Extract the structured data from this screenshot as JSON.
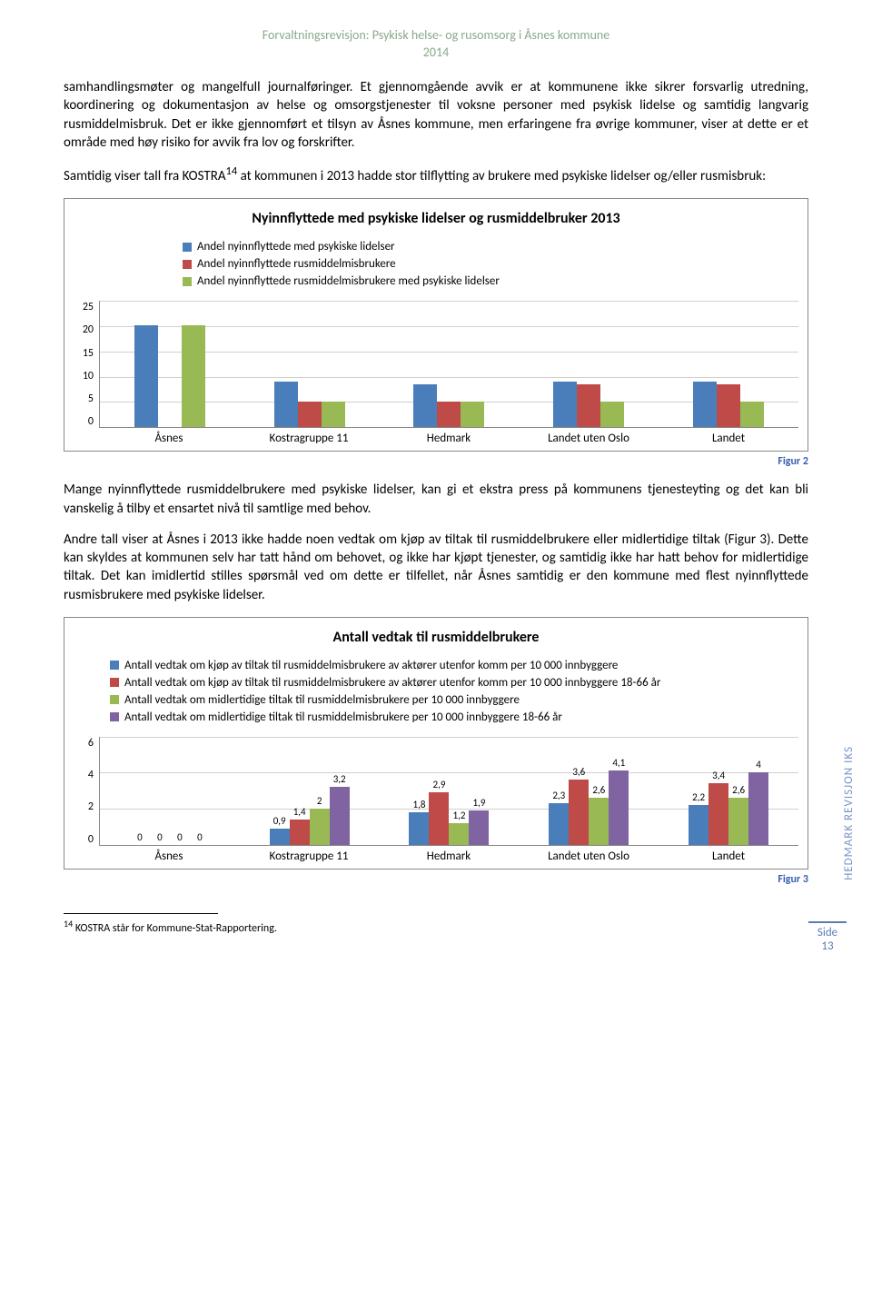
{
  "header": {
    "title": "Forvaltningsrevisjon: Psykisk helse- og rusomsorg i Åsnes kommune",
    "year": "2014"
  },
  "paragraphs": {
    "p1": "samhandlingsmøter og mangelfull journalføringer. Et gjennomgående avvik er at kommunene ikke sikrer forsvarlig utredning, koordinering og dokumentasjon av helse og omsorgstjenester til voksne personer med psykisk lidelse og samtidig langvarig rusmiddelmisbruk. Det er ikke gjennomført et tilsyn av Åsnes kommune, men erfaringene fra øvrige kommuner, viser at dette er et område med høy risiko for avvik fra lov og forskrifter.",
    "p2_pre": "Samtidig viser tall fra KOSTRA",
    "p2_sup": "14",
    "p2_post": " at kommunen i 2013 hadde stor tilflytting av brukere med psykiske lidelser og/eller rusmisbruk:",
    "p3": "Mange nyinnflyttede rusmiddelbrukere med psykiske lidelser, kan gi et ekstra press på kommunens tjenesteyting og det kan bli vanskelig å tilby et ensartet nivå til samtlige med behov.",
    "p4": "Andre tall viser at Åsnes i 2013 ikke hadde noen vedtak om kjøp av tiltak til rusmiddelbrukere eller midlertidige tiltak (Figur 3). Dette kan skyldes at kommunen selv har tatt hånd om behovet, og ikke har kjøpt tjenester, og samtidig ikke har hatt behov for midlertidige tiltak. Det kan imidlertid stilles spørsmål ved om dette er tilfellet, når Åsnes samtidig er den kommune med flest nyinnflyttede rusmisbrukere med psykiske lidelser."
  },
  "chart1": {
    "type": "bar",
    "title": "Nyinnflyttede med psykiske lidelser og rusmiddelbruker 2013",
    "legend": [
      {
        "color": "#4a7ebb",
        "label": "Andel nyinnflyttede med psykiske lidelser"
      },
      {
        "color": "#be4b48",
        "label": "Andel nyinnflyttede rusmiddelmisbrukere"
      },
      {
        "color": "#98b954",
        "label": "Andel nyinnflyttede rusmiddelmisbrukere med psykiske lidelser"
      }
    ],
    "categories": [
      "Åsnes",
      "Kostragruppe 11",
      "Hedmark",
      "Landet uten Oslo",
      "Landet"
    ],
    "series": [
      [
        20,
        9,
        8.5,
        9,
        9
      ],
      [
        0,
        5,
        5,
        8.5,
        8.5
      ],
      [
        20,
        5,
        5,
        5,
        5
      ]
    ],
    "ymax": 25,
    "ytick_step": 5,
    "colors": [
      "#4a7ebb",
      "#be4b48",
      "#98b954"
    ],
    "caption": "Figur 2"
  },
  "chart2": {
    "type": "bar",
    "title": "Antall vedtak til rusmiddelbrukere",
    "legend": [
      {
        "color": "#4a7ebb",
        "label": "Antall vedtak om kjøp av tiltak til rusmiddelmisbrukere av aktører utenfor komm per 10 000 innbyggere"
      },
      {
        "color": "#be4b48",
        "label": "Antall vedtak om kjøp av tiltak til rusmiddelmisbrukere av aktører utenfor komm per 10 000 innbyggere 18-66 år"
      },
      {
        "color": "#98b954",
        "label": "Antall vedtak om midlertidige tiltak til rusmiddelmisbrukere per 10 000 innbyggere"
      },
      {
        "color": "#8064a2",
        "label": "Antall vedtak om midlertidige tiltak til rusmiddelmisbrukere per 10 000 innbyggere 18-66 år"
      }
    ],
    "categories": [
      "Åsnes",
      "Kostragruppe 11",
      "Hedmark",
      "Landet uten Oslo",
      "Landet"
    ],
    "series": [
      [
        0,
        0.9,
        1.8,
        2.3,
        2.2
      ],
      [
        0,
        1.4,
        2.9,
        3.6,
        3.4
      ],
      [
        0,
        2,
        1.2,
        2.6,
        2.6
      ],
      [
        0,
        3.2,
        1.9,
        4.1,
        4
      ]
    ],
    "value_labels": [
      [
        "0",
        "0",
        "0",
        "0"
      ],
      [
        "0,9",
        "1,4",
        "2",
        "3,2"
      ],
      [
        "1,8",
        "2,9",
        "1,2",
        "1,9"
      ],
      [
        "2,3",
        "3,6",
        "2,6",
        "4,1"
      ],
      [
        "2,2",
        "3,4",
        "2,6",
        "4"
      ]
    ],
    "ymax": 6,
    "ytick_step": 2,
    "colors": [
      "#4a7ebb",
      "#be4b48",
      "#98b954",
      "#8064a2"
    ],
    "caption": "Figur 3"
  },
  "footnote": {
    "num": "14",
    "text": " KOSTRA står for Kommune-Stat-Rapportering."
  },
  "side_text": "HEDMARK REVISJON IKS",
  "page_label": "Side",
  "page_number": "13"
}
